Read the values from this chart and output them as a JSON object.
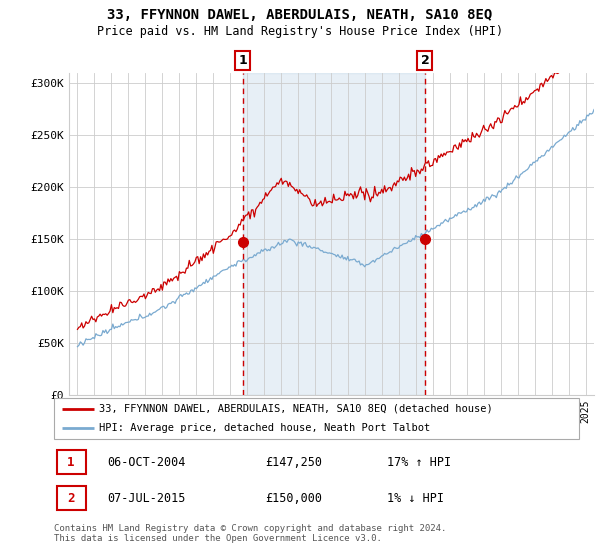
{
  "title": "33, FFYNNON DAWEL, ABERDULAIS, NEATH, SA10 8EQ",
  "subtitle": "Price paid vs. HM Land Registry's House Price Index (HPI)",
  "ylabel_ticks": [
    "£0",
    "£50K",
    "£100K",
    "£150K",
    "£200K",
    "£250K",
    "£300K"
  ],
  "ytick_values": [
    0,
    50000,
    100000,
    150000,
    200000,
    250000,
    300000
  ],
  "ylim": [
    0,
    310000
  ],
  "xlim_start": 1994.5,
  "xlim_end": 2025.5,
  "sale1_x": 2004.77,
  "sale1_y": 147250,
  "sale2_x": 2015.52,
  "sale2_y": 150000,
  "legend_line1": "33, FFYNNON DAWEL, ABERDULAIS, NEATH, SA10 8EQ (detached house)",
  "legend_line2": "HPI: Average price, detached house, Neath Port Talbot",
  "table_row1_num": "1",
  "table_row1_date": "06-OCT-2004",
  "table_row1_price": "£147,250",
  "table_row1_hpi": "17% ↑ HPI",
  "table_row2_num": "2",
  "table_row2_date": "07-JUL-2015",
  "table_row2_price": "£150,000",
  "table_row2_hpi": "1% ↓ HPI",
  "footer": "Contains HM Land Registry data © Crown copyright and database right 2024.\nThis data is licensed under the Open Government Licence v3.0.",
  "red_color": "#cc0000",
  "blue_color": "#7aaad0",
  "shade_color": "#ddeeff",
  "dashed_color": "#cc0000",
  "background_color": "#ffffff",
  "grid_color": "#cccccc"
}
